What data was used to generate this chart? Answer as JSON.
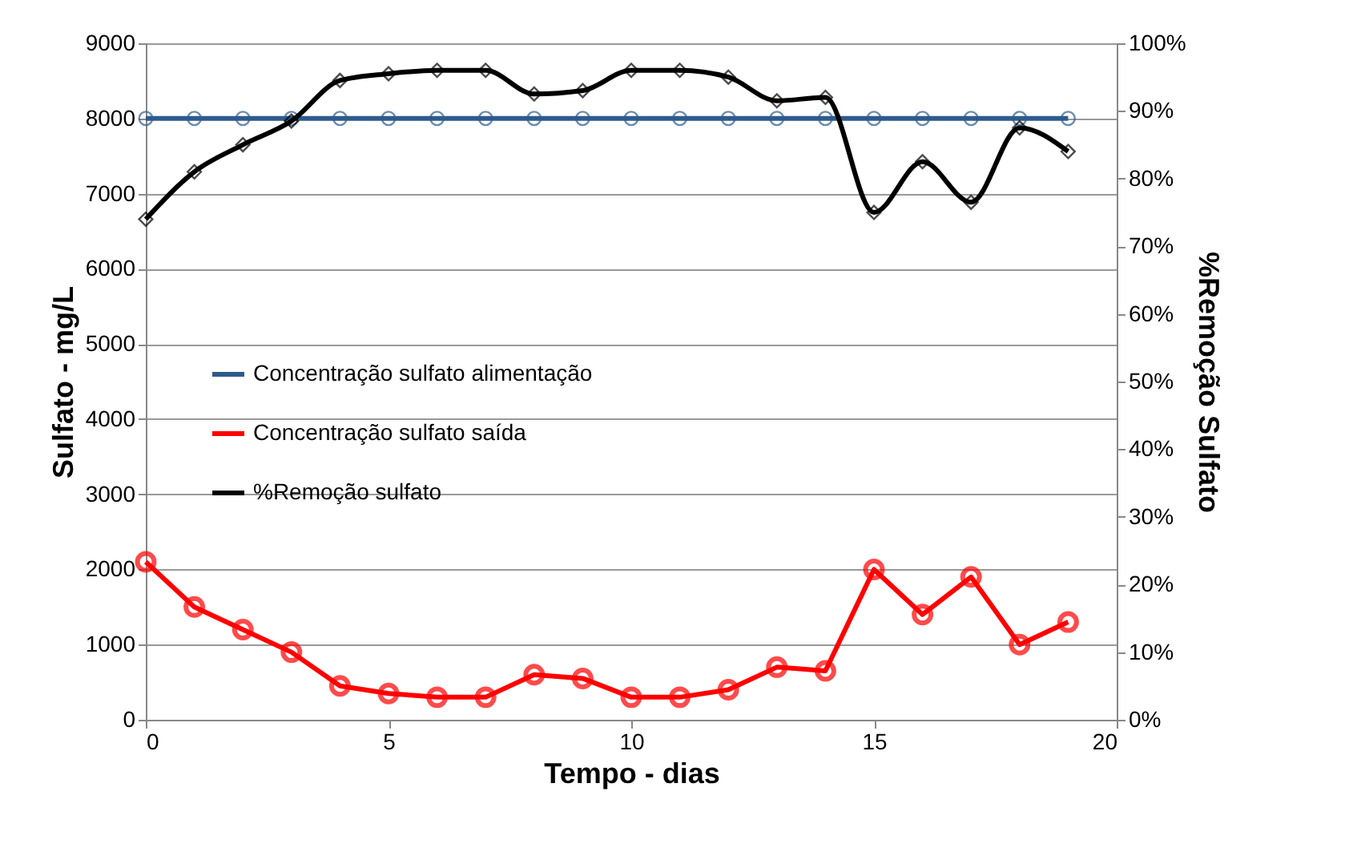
{
  "chart_data": {
    "type": "line",
    "xlabel": "Tempo - dias",
    "ylabel": "Sulfato - mg/L",
    "y2label": "%Remoção Sulfato",
    "x": [
      0,
      1,
      2,
      3,
      4,
      5,
      6,
      7,
      8,
      9,
      10,
      11,
      12,
      13,
      14,
      15,
      16,
      17,
      18,
      19
    ],
    "series": [
      {
        "name": "Concentração sulfato alimentação",
        "color": "#2e5b8c",
        "marker": "circle",
        "values": [
          8000,
          8000,
          8000,
          8000,
          8000,
          8000,
          8000,
          8000,
          8000,
          8000,
          8000,
          8000,
          8000,
          8000,
          8000,
          8000,
          8000,
          8000,
          8000,
          8000
        ]
      },
      {
        "name": "Concentração sulfato saída",
        "color": "#ff0000",
        "marker": "circle",
        "values": [
          2100,
          1500,
          1200,
          900,
          450,
          350,
          300,
          300,
          600,
          550,
          300,
          300,
          400,
          700,
          650,
          2000,
          1400,
          1900,
          1000,
          1300
        ]
      },
      {
        "name": "%Remoção sulfato",
        "color": "#000000",
        "marker": "diamond",
        "axis": "y2",
        "values": [
          74,
          81,
          85,
          88.5,
          94.5,
          95.5,
          96,
          96,
          92.5,
          93,
          96,
          96,
          95,
          91.5,
          92,
          75,
          82.5,
          76.5,
          87.5,
          84
        ]
      }
    ],
    "xlim": [
      0,
      20
    ],
    "xticks": [
      0,
      5,
      10,
      15,
      20
    ],
    "ylim": [
      0,
      9000
    ],
    "yticks": [
      0,
      1000,
      2000,
      3000,
      4000,
      5000,
      6000,
      7000,
      8000,
      9000
    ],
    "y2lim": [
      0,
      100
    ],
    "y2ticks": [
      {
        "value": 0,
        "label": "0%"
      },
      {
        "value": 10,
        "label": "10%"
      },
      {
        "value": 20,
        "label": "20%"
      },
      {
        "value": 30,
        "label": "30%"
      },
      {
        "value": 40,
        "label": "40%"
      },
      {
        "value": 50,
        "label": "50%"
      },
      {
        "value": 60,
        "label": "60%"
      },
      {
        "value": 70,
        "label": "70%"
      },
      {
        "value": 80,
        "label": "80%"
      },
      {
        "value": 90,
        "label": "90%"
      },
      {
        "value": 100,
        "label": "100%"
      }
    ],
    "grid": "y",
    "legend": "left"
  }
}
